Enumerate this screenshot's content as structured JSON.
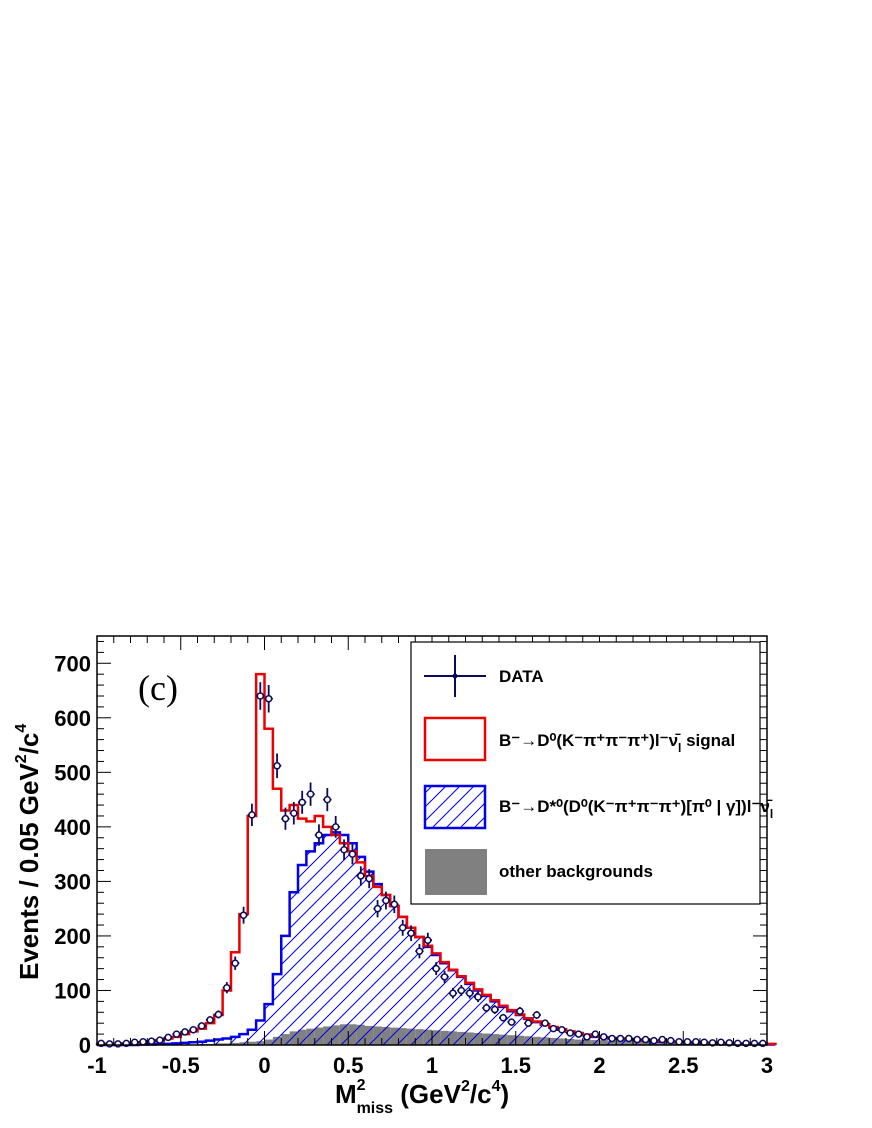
{
  "chart_data": {
    "type": "histogram",
    "panel_label": "(c)",
    "xlabel": {
      "main": "M",
      "sup": "2",
      "sub": "miss",
      "rest": " (GeV",
      "rest_sup": "2",
      "rest2": "/c",
      "rest2_sup": "4",
      "close": ")"
    },
    "ylabel": {
      "main": "Events / 0.05 GeV",
      "sup": "2",
      "rest": "/c",
      "rest_sup": "4"
    },
    "xlim": [
      -1.0,
      3.0
    ],
    "ylim": [
      0,
      750
    ],
    "bin_width": 0.05,
    "x_ticks": [
      "-1",
      "-0.5",
      "0",
      "0.5",
      "1",
      "1.5",
      "2",
      "2.5",
      "3"
    ],
    "x_tick_values": [
      -1,
      -0.5,
      0,
      0.5,
      1,
      1.5,
      2,
      2.5,
      3
    ],
    "y_ticks": [
      "0",
      "100",
      "200",
      "300",
      "400",
      "500",
      "600",
      "700"
    ],
    "y_tick_values": [
      0,
      100,
      200,
      300,
      400,
      500,
      600,
      700
    ],
    "legend": {
      "data": "DATA",
      "signal": {
        "prefix": "B",
        "arrow": "→D",
        "mid": "(K",
        "tail": ") l",
        "nu": "ν",
        "nu_sub": "l",
        "suffix": " signal"
      },
      "dstar": {
        "text": "B⁻→D*⁰(D⁰(K⁻π⁺π⁻π⁺)[π⁰ | γ])l⁻ν̄",
        "sub": "l"
      },
      "other": "other backgrounds",
      "signal_text": "B⁻→D⁰(K⁻π⁺π⁻π⁺)l⁻ν̄",
      "signal_sub": "l",
      "signal_suffix": " signal"
    },
    "colors": {
      "data": "#0a0a5a",
      "total": "#ee0000",
      "dstar": "#0000ee",
      "other": "#808080"
    },
    "bin_edges_start": -1.0,
    "series": [
      {
        "name": "other backgrounds",
        "values": [
          0,
          0,
          0,
          0,
          0,
          0,
          0,
          0,
          1,
          1,
          1,
          1,
          2,
          2,
          3,
          3,
          4,
          5,
          6,
          7,
          10,
          15,
          20,
          25,
          28,
          30,
          32,
          34,
          36,
          38,
          38,
          37,
          35,
          34,
          33,
          32,
          31,
          30,
          29,
          28,
          27,
          26,
          25,
          24,
          23,
          22,
          21,
          20,
          19,
          18,
          17,
          16,
          15,
          14,
          13,
          12,
          11,
          10,
          10,
          9,
          9,
          8,
          8,
          7,
          7,
          6,
          6,
          5,
          5,
          5,
          4,
          4,
          4,
          3,
          3,
          3,
          2,
          2,
          2,
          2,
          2
        ]
      },
      {
        "name": "B⁻→D*⁰(D⁰(K⁻π⁺π⁻π⁺)[π⁰ | γ])l⁻ν̄l",
        "values": [
          0,
          0,
          0,
          0,
          0,
          1,
          1,
          2,
          2,
          3,
          4,
          5,
          6,
          8,
          10,
          12,
          15,
          20,
          28,
          45,
          75,
          130,
          200,
          280,
          330,
          355,
          370,
          385,
          390,
          385,
          370,
          345,
          318,
          295,
          275,
          255,
          235,
          215,
          198,
          180,
          165,
          150,
          137,
          125,
          112,
          100,
          90,
          80,
          70,
          62,
          55,
          48,
          42,
          37,
          32,
          28,
          24,
          21,
          18,
          15,
          13,
          12,
          11,
          10,
          9,
          8,
          7,
          6,
          6,
          5,
          5,
          4,
          4,
          3,
          3,
          3,
          2,
          2,
          2,
          2,
          1
        ]
      },
      {
        "name": "total (B⁻→D⁰(K⁻π⁺π⁻π⁺)l⁻ν̄l signal)",
        "values": [
          1,
          2,
          2,
          3,
          4,
          5,
          7,
          9,
          12,
          15,
          20,
          25,
          30,
          40,
          55,
          100,
          170,
          240,
          420,
          680,
          580,
          470,
          430,
          440,
          415,
          410,
          420,
          400,
          385,
          370,
          355,
          335,
          310,
          290,
          275,
          255,
          235,
          215,
          198,
          182,
          168,
          152,
          138,
          126,
          114,
          102,
          92,
          82,
          72,
          64,
          56,
          49,
          43,
          38,
          33,
          29,
          25,
          22,
          19,
          16,
          14,
          13,
          12,
          11,
          10,
          9,
          8,
          7,
          6,
          6,
          5,
          5,
          4,
          4,
          3,
          3,
          3,
          3,
          2,
          2,
          2
        ]
      },
      {
        "name": "DATA",
        "points": [
          [
            -0.975,
            3
          ],
          [
            -0.925,
            2
          ],
          [
            -0.875,
            2
          ],
          [
            -0.825,
            3
          ],
          [
            -0.775,
            5
          ],
          [
            -0.725,
            6
          ],
          [
            -0.675,
            7
          ],
          [
            -0.625,
            9
          ],
          [
            -0.575,
            14
          ],
          [
            -0.525,
            20
          ],
          [
            -0.475,
            24
          ],
          [
            -0.425,
            28
          ],
          [
            -0.375,
            35
          ],
          [
            -0.325,
            46
          ],
          [
            -0.275,
            56
          ],
          [
            -0.225,
            105
          ],
          [
            -0.175,
            150
          ],
          [
            -0.125,
            238
          ],
          [
            -0.075,
            422
          ],
          [
            -0.025,
            640
          ],
          [
            0.025,
            635
          ],
          [
            0.075,
            512
          ],
          [
            0.125,
            415
          ],
          [
            0.175,
            425
          ],
          [
            0.225,
            445
          ],
          [
            0.275,
            460
          ],
          [
            0.325,
            385
          ],
          [
            0.375,
            450
          ],
          [
            0.425,
            400
          ],
          [
            0.475,
            358
          ],
          [
            0.525,
            350
          ],
          [
            0.575,
            310
          ],
          [
            0.625,
            305
          ],
          [
            0.675,
            250
          ],
          [
            0.725,
            265
          ],
          [
            0.775,
            258
          ],
          [
            0.825,
            215
          ],
          [
            0.875,
            205
          ],
          [
            0.925,
            172
          ],
          [
            0.975,
            192
          ],
          [
            1.025,
            140
          ],
          [
            1.075,
            125
          ],
          [
            1.125,
            95
          ],
          [
            1.175,
            100
          ],
          [
            1.225,
            95
          ],
          [
            1.275,
            88
          ],
          [
            1.325,
            68
          ],
          [
            1.375,
            65
          ],
          [
            1.425,
            50
          ],
          [
            1.475,
            42
          ],
          [
            1.525,
            62
          ],
          [
            1.575,
            40
          ],
          [
            1.625,
            55
          ],
          [
            1.675,
            40
          ],
          [
            1.725,
            30
          ],
          [
            1.775,
            28
          ],
          [
            1.825,
            22
          ],
          [
            1.875,
            20
          ],
          [
            1.925,
            15
          ],
          [
            1.975,
            20
          ],
          [
            2.025,
            15
          ],
          [
            2.075,
            12
          ],
          [
            2.125,
            12
          ],
          [
            2.175,
            12
          ],
          [
            2.225,
            10
          ],
          [
            2.275,
            10
          ],
          [
            2.325,
            8
          ],
          [
            2.375,
            10
          ],
          [
            2.425,
            8
          ],
          [
            2.475,
            6
          ],
          [
            2.525,
            6
          ],
          [
            2.575,
            6
          ],
          [
            2.625,
            5
          ],
          [
            2.675,
            4
          ],
          [
            2.725,
            5
          ],
          [
            2.775,
            4
          ],
          [
            2.825,
            3
          ],
          [
            2.875,
            3
          ],
          [
            2.925,
            3
          ],
          [
            2.975,
            3
          ]
        ]
      }
    ]
  }
}
